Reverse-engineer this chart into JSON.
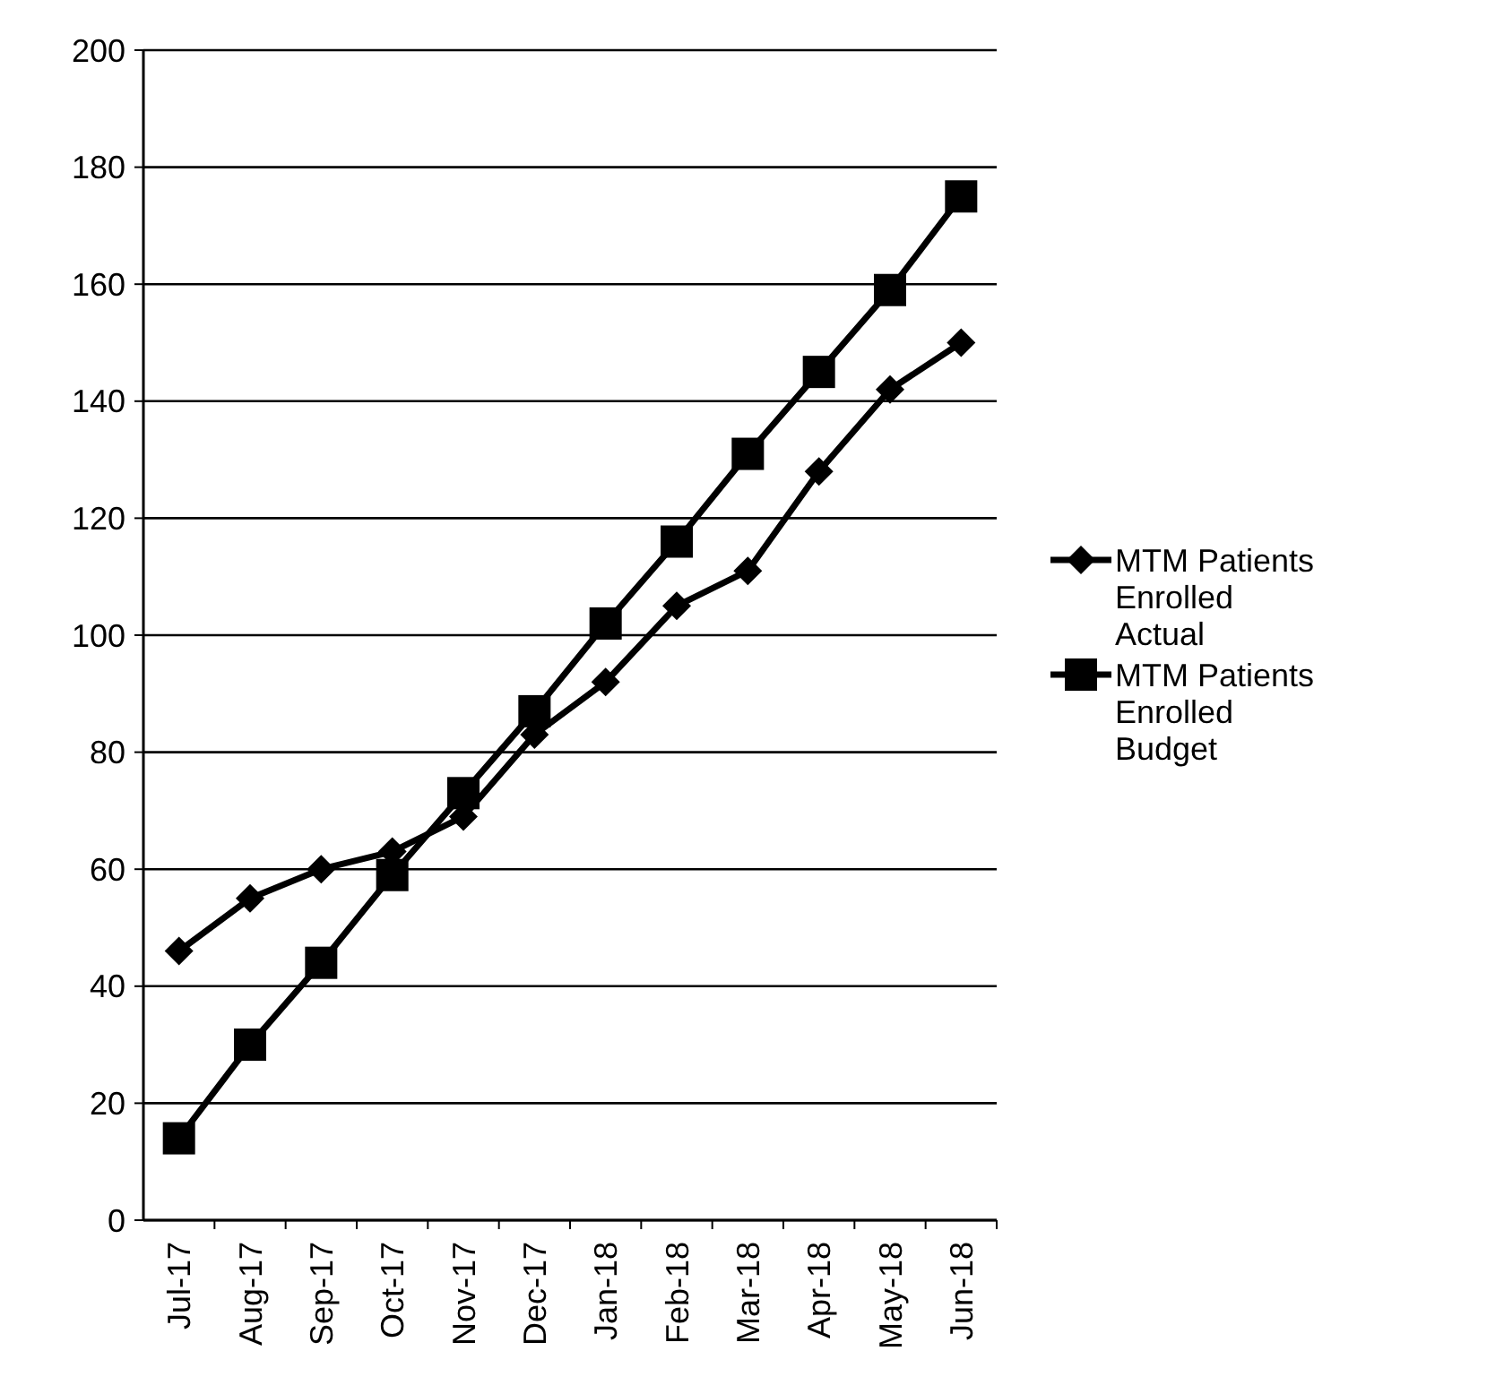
{
  "chart_data": {
    "type": "line",
    "categories": [
      "Jul-17",
      "Aug-17",
      "Sep-17",
      "Oct-17",
      "Nov-17",
      "Dec-17",
      "Jan-18",
      "Feb-18",
      "Mar-18",
      "Apr-18",
      "May-18",
      "Jun-18"
    ],
    "series": [
      {
        "name": "MTM Patients Enrolled Actual",
        "color": "#000000",
        "marker": "diamond",
        "values": [
          46,
          55,
          60,
          63,
          69,
          83,
          92,
          105,
          111,
          128,
          142,
          150
        ]
      },
      {
        "name": "MTM Patients Enrolled Budget",
        "color": "#000000",
        "marker": "square",
        "values": [
          14,
          30,
          44,
          59,
          73,
          87,
          102,
          116,
          131,
          145,
          159,
          175
        ]
      }
    ],
    "ylim": [
      0,
      200
    ],
    "yticks": [
      0,
      20,
      40,
      60,
      80,
      100,
      120,
      140,
      160,
      180,
      200
    ],
    "grid": "y",
    "legend": "right",
    "line_style": "solid"
  }
}
